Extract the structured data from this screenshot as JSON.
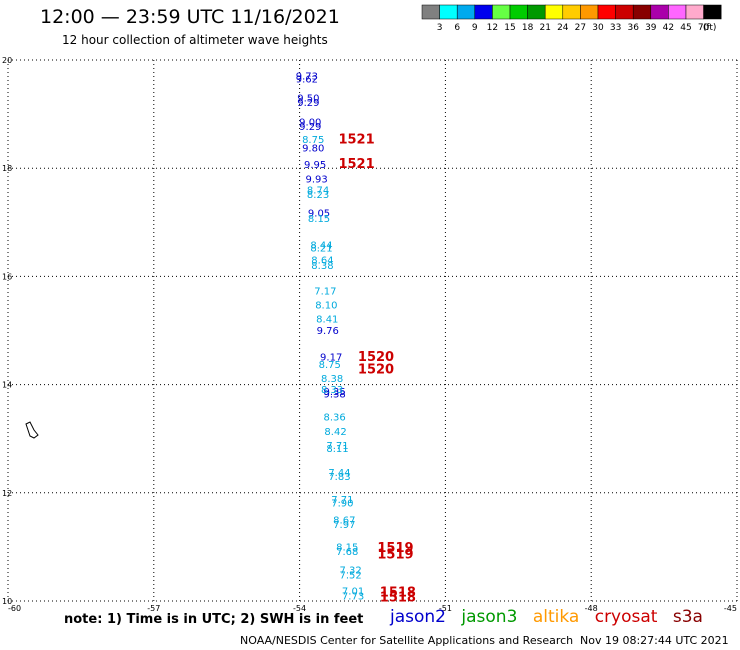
{
  "header": {
    "title": "12:00 — 23:59 UTC 11/16/2021",
    "subtitle": "12 hour collection of altimeter wave heights"
  },
  "color_scale": {
    "colors": [
      "#808080",
      "#00ffff",
      "#00aaee",
      "#0000ee",
      "#66ff44",
      "#00cc00",
      "#009900",
      "#ffff00",
      "#ffcc00",
      "#ff9900",
      "#ff0000",
      "#cc0000",
      "#880000",
      "#aa00aa",
      "#ff66ff",
      "#ffaacc",
      "#000000"
    ],
    "labels": [
      "3",
      "6",
      "9",
      "12",
      "15",
      "18",
      "21",
      "24",
      "27",
      "30",
      "33",
      "36",
      "39",
      "42",
      "45",
      "70"
    ],
    "unit": "(ft)"
  },
  "chart_data": {
    "type": "scatter",
    "title": "12:00 — 23:59 UTC 11/16/2021",
    "subtitle": "12 hour collection of altimeter wave heights",
    "xlim": [
      -60,
      -45
    ],
    "ylim": [
      10,
      20
    ],
    "x_ticks": [
      "-60",
      "-57",
      "-54",
      "-51",
      "-48",
      "-45"
    ],
    "y_ticks": [
      "10",
      "12",
      "14",
      "16",
      "18",
      "20"
    ],
    "grid": true,
    "series": [
      {
        "name": "jason2",
        "color": "#0000cc",
        "points": [
          {
            "lon": -53.85,
            "lat": 19.71,
            "label": "9.73"
          },
          {
            "lon": -53.85,
            "lat": 19.66,
            "label": "9.62"
          },
          {
            "lon": -53.82,
            "lat": 19.31,
            "label": "9.50"
          },
          {
            "lon": -53.82,
            "lat": 19.22,
            "label": "9.29"
          },
          {
            "lon": -53.78,
            "lat": 18.86,
            "label": "9.00"
          },
          {
            "lon": -53.78,
            "lat": 18.78,
            "label": "9.29"
          },
          {
            "lon": -53.72,
            "lat": 18.38,
            "label": "9.80"
          },
          {
            "lon": -53.68,
            "lat": 18.08,
            "label": "9.95"
          },
          {
            "lon": -53.65,
            "lat": 17.81,
            "label": "9.93"
          },
          {
            "lon": -53.6,
            "lat": 17.18,
            "label": "9.05"
          },
          {
            "lon": -53.42,
            "lat": 15.01,
            "label": "9.76"
          },
          {
            "lon": -53.35,
            "lat": 14.52,
            "label": "9.17"
          },
          {
            "lon": -53.28,
            "lat": 13.88,
            "label": "9.35"
          },
          {
            "lon": -53.28,
            "lat": 13.84,
            "label": "9.38"
          }
        ]
      },
      {
        "name": "jason3",
        "color": "#00aadd",
        "points": [
          {
            "lon": -53.72,
            "lat": 18.54,
            "label": "8.75"
          },
          {
            "lon": -53.62,
            "lat": 17.61,
            "label": "8.74"
          },
          {
            "lon": -53.62,
            "lat": 17.52,
            "label": "8.23"
          },
          {
            "lon": -53.6,
            "lat": 17.08,
            "label": "8.15"
          },
          {
            "lon": -53.55,
            "lat": 16.59,
            "label": "8.44"
          },
          {
            "lon": -53.55,
            "lat": 16.53,
            "label": "8.21"
          },
          {
            "lon": -53.53,
            "lat": 16.31,
            "label": "8.64"
          },
          {
            "lon": -53.53,
            "lat": 16.21,
            "label": "8.38"
          },
          {
            "lon": -53.47,
            "lat": 15.74,
            "label": "7.17"
          },
          {
            "lon": -53.45,
            "lat": 15.48,
            "label": "8.10"
          },
          {
            "lon": -53.43,
            "lat": 15.22,
            "label": "8.41"
          },
          {
            "lon": -53.38,
            "lat": 14.38,
            "label": "8.75"
          },
          {
            "lon": -53.33,
            "lat": 14.12,
            "label": "8.38"
          },
          {
            "lon": -53.33,
            "lat": 13.92,
            "label": "8.33"
          },
          {
            "lon": -53.28,
            "lat": 13.41,
            "label": "8.36"
          },
          {
            "lon": -53.26,
            "lat": 13.14,
            "label": "8.42"
          },
          {
            "lon": -53.22,
            "lat": 12.88,
            "label": "7.71"
          },
          {
            "lon": -53.22,
            "lat": 12.83,
            "label": "8.11"
          },
          {
            "lon": -53.18,
            "lat": 12.38,
            "label": "7.44"
          },
          {
            "lon": -53.18,
            "lat": 12.31,
            "label": "7.83"
          },
          {
            "lon": -53.12,
            "lat": 11.89,
            "label": "7.71"
          },
          {
            "lon": -53.12,
            "lat": 11.82,
            "label": "7.90"
          },
          {
            "lon": -53.08,
            "lat": 11.51,
            "label": "8.67"
          },
          {
            "lon": -53.08,
            "lat": 11.42,
            "label": "7.97"
          },
          {
            "lon": -53.02,
            "lat": 11.01,
            "label": "8.15"
          },
          {
            "lon": -53.02,
            "lat": 10.92,
            "label": "7.68"
          },
          {
            "lon": -52.95,
            "lat": 10.58,
            "label": "7.32"
          },
          {
            "lon": -52.95,
            "lat": 10.49,
            "label": "7.52"
          },
          {
            "lon": -52.9,
            "lat": 10.19,
            "label": "7.01"
          },
          {
            "lon": -52.9,
            "lat": 10.1,
            "label": "7.73"
          }
        ]
      }
    ],
    "time_labels": {
      "color": "#cc0000",
      "items": [
        {
          "lon": -53.2,
          "lat": 18.55,
          "label": "1521"
        },
        {
          "lon": -53.2,
          "lat": 18.1,
          "label": "1521"
        },
        {
          "lon": -52.8,
          "lat": 14.53,
          "label": "1520"
        },
        {
          "lon": -52.8,
          "lat": 14.3,
          "label": "1520"
        },
        {
          "lon": -52.4,
          "lat": 11.0,
          "label": "1519"
        },
        {
          "lon": -52.4,
          "lat": 10.88,
          "label": "1519"
        },
        {
          "lon": -52.35,
          "lat": 10.18,
          "label": "1518"
        },
        {
          "lon": -52.35,
          "lat": 10.08,
          "label": "1518"
        }
      ]
    }
  },
  "footer": {
    "note": "note:  1) Time is in UTC;  2) SWH is in feet",
    "legend": [
      {
        "label": "jason2",
        "color": "#0000cc"
      },
      {
        "label": "jason3",
        "color": "#009900"
      },
      {
        "label": "altika",
        "color": "#ff9900"
      },
      {
        "label": "cryosat",
        "color": "#cc0000"
      },
      {
        "label": "s3a",
        "color": "#880000"
      }
    ],
    "credit": "NOAA/NESDIS Center for Satellite Applications and Research",
    "timestamp": "Nov 19 08:27:44 UTC 2021"
  }
}
